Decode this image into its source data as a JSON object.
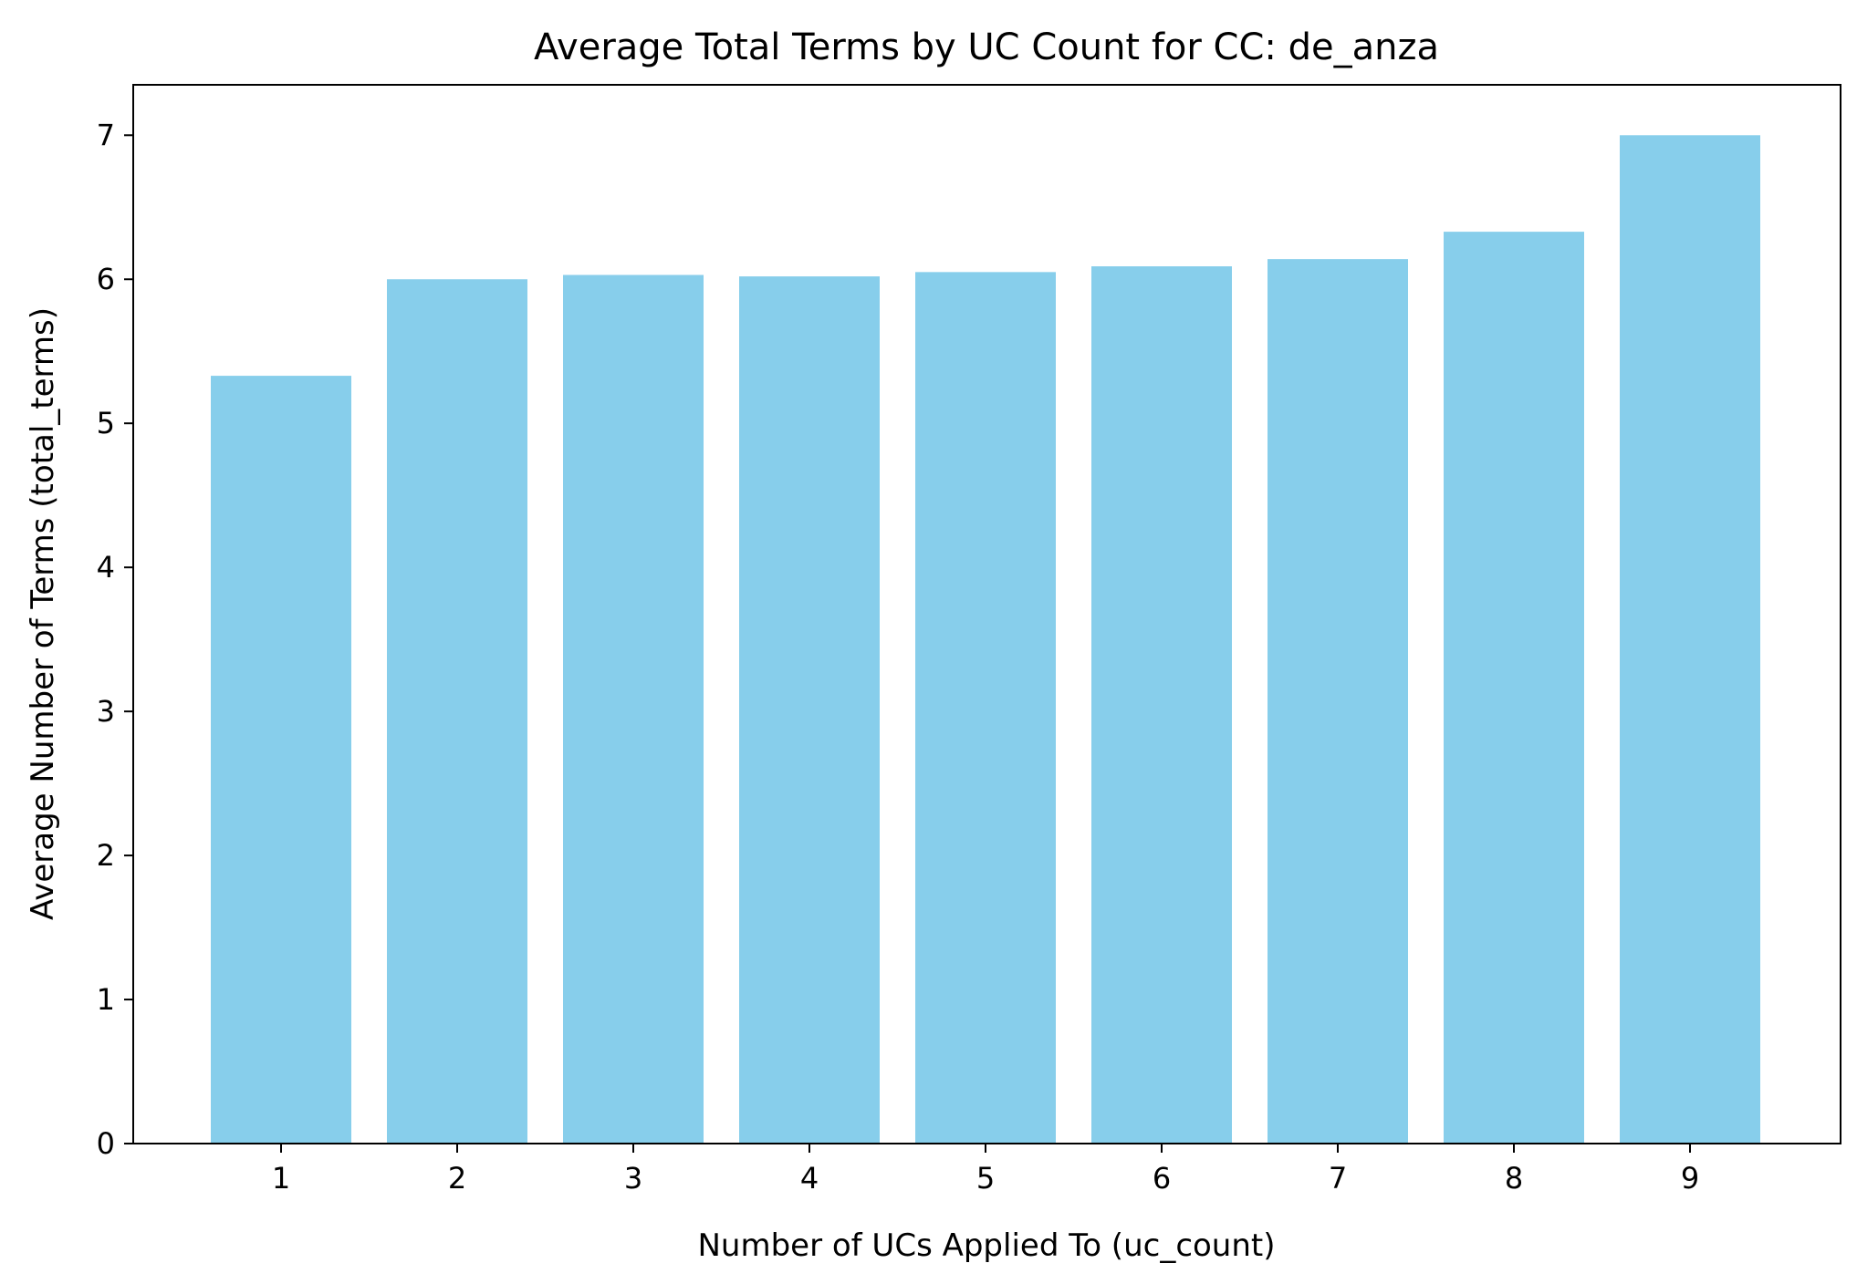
{
  "chart_data": {
    "type": "bar",
    "title": "Average Total Terms by UC Count for CC: de_anza",
    "xlabel": "Number of UCs Applied To (uc_count)",
    "ylabel": "Average Number of Terms (total_terms)",
    "categories": [
      "1",
      "2",
      "3",
      "4",
      "5",
      "6",
      "7",
      "8",
      "9"
    ],
    "values": [
      5.33,
      6.0,
      6.03,
      6.02,
      6.05,
      6.09,
      6.14,
      6.33,
      7.0
    ],
    "ylim": [
      0,
      7.35
    ],
    "yticks": [
      0,
      1,
      2,
      3,
      4,
      5,
      6,
      7
    ],
    "grid": false,
    "bar_color": "#87CEEB"
  }
}
